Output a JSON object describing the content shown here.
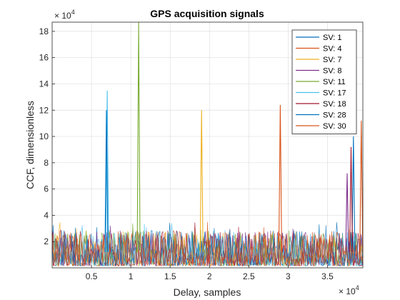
{
  "chart_data": {
    "type": "line",
    "title": "GPS acquisition signals",
    "xlabel": "Delay, samples",
    "ylabel": "CCF, dimensionless",
    "x_exponent_label": "× 10",
    "x_exponent_power": "4",
    "y_exponent_label": "× 10",
    "y_exponent_power": "4",
    "xlim": [
      0,
      39500
    ],
    "ylim": [
      0,
      187000
    ],
    "x_ticks": [
      5000,
      10000,
      15000,
      20000,
      25000,
      30000,
      35000
    ],
    "x_tick_labels": [
      "0.5",
      "1",
      "1.5",
      "2",
      "2.5",
      "3",
      "3.5"
    ],
    "y_ticks": [
      20000,
      40000,
      60000,
      80000,
      100000,
      120000,
      140000,
      160000,
      180000
    ],
    "y_tick_labels": [
      "2",
      "4",
      "6",
      "8",
      "10",
      "12",
      "14",
      "16",
      "18"
    ],
    "grid": true,
    "legend_position": "top-right",
    "noise_floor": {
      "typical_max": 27000,
      "occasional_max": 35000
    },
    "series": [
      {
        "name": "SV: 1",
        "color": "#0072BD",
        "peak_x": 38300,
        "peak_y": 100000
      },
      {
        "name": "SV: 4",
        "color": "#D95319",
        "peak_x": 29000,
        "peak_y": 124000
      },
      {
        "name": "SV: 7",
        "color": "#EDB120",
        "peak_x": 19000,
        "peak_y": 120000
      },
      {
        "name": "SV: 8",
        "color": "#7E2F8E",
        "peak_x": 37500,
        "peak_y": 72000
      },
      {
        "name": "SV: 11",
        "color": "#77AC30",
        "peak_x": 11000,
        "peak_y": 187000
      },
      {
        "name": "SV: 17",
        "color": "#4DBEEE",
        "peak_x": 7000,
        "peak_y": 135000
      },
      {
        "name": "SV: 18",
        "color": "#A2142F",
        "peak_x": 38000,
        "peak_y": 92000
      },
      {
        "name": "SV: 28",
        "color": "#0072BD",
        "peak_x": 6900,
        "peak_y": 120000
      },
      {
        "name": "SV: 30",
        "color": "#D95319",
        "peak_x": 39300,
        "peak_y": 112000
      }
    ]
  }
}
